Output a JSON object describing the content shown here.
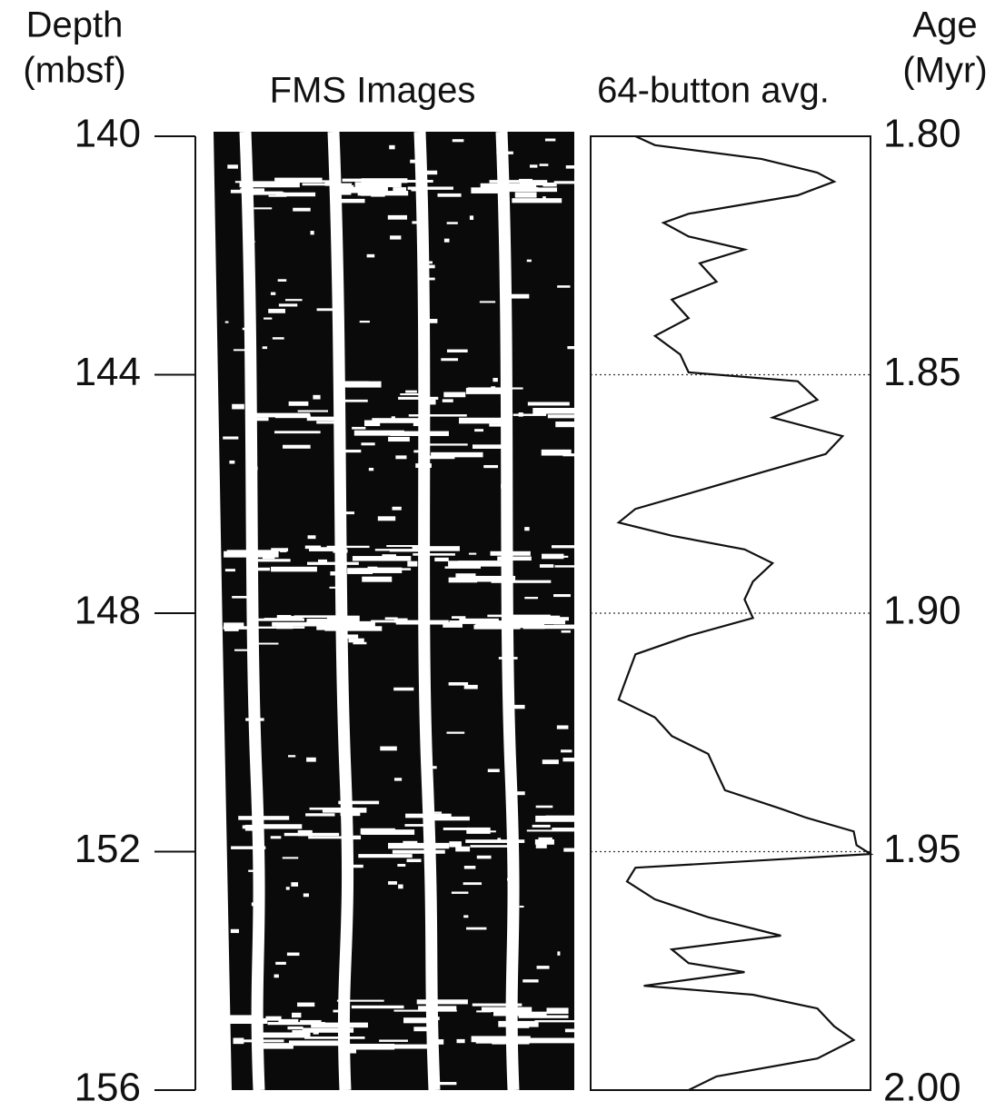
{
  "chart_data": {
    "type": "line",
    "ylabel": [
      "Depth",
      "(mbsf)"
    ],
    "y2label": [
      "Age",
      "(Myr)"
    ],
    "panel_titles": [
      "FMS Images",
      "64-button avg."
    ],
    "ylim": [
      140,
      156
    ],
    "yticks": [
      140,
      144,
      148,
      152,
      156
    ],
    "y2lim": [
      1.8,
      2.0
    ],
    "y2ticks": [
      {
        "value": 1.8,
        "label": "1.80"
      },
      {
        "value": 1.85,
        "label": "1.85"
      },
      {
        "value": 1.9,
        "label": "1.90"
      },
      {
        "value": 1.95,
        "label": "1.95"
      },
      {
        "value": 2.0,
        "label": "2.00"
      }
    ],
    "xlim": [
      0,
      100
    ],
    "grid": true,
    "series": [
      {
        "color": "#111111",
        "depth": [
          140.0,
          140.15,
          140.38,
          140.61,
          140.76,
          140.99,
          141.3,
          141.45,
          141.68,
          141.9,
          142.13,
          142.44,
          142.74,
          143.05,
          143.35,
          143.66,
          143.96,
          144.11,
          144.42,
          144.72,
          145.03,
          145.33,
          145.64,
          145.94,
          146.25,
          146.48,
          146.7,
          146.93,
          147.16,
          147.47,
          147.77,
          148.08,
          148.38,
          148.69,
          149.07,
          149.45,
          149.75,
          150.06,
          150.36,
          150.67,
          150.97,
          151.28,
          151.43,
          151.66,
          151.89,
          152.04,
          152.27,
          152.5,
          152.8,
          153.1,
          153.41,
          153.64,
          153.87,
          154.02,
          154.25,
          154.4,
          154.63,
          154.93,
          155.16,
          155.47,
          155.77,
          156.0
        ],
        "values": [
          16,
          23,
          61,
          81,
          87,
          74,
          35,
          26,
          35,
          55,
          39,
          45,
          29,
          35,
          23,
          32,
          35,
          74,
          81,
          65,
          90,
          84,
          61,
          39,
          16,
          10,
          29,
          55,
          65,
          58,
          55,
          58,
          35,
          16,
          13,
          10,
          23,
          29,
          42,
          45,
          48,
          68,
          77,
          94,
          95,
          100,
          16,
          13,
          23,
          42,
          68,
          29,
          35,
          55,
          19,
          58,
          81,
          87,
          94,
          81,
          45,
          35
        ]
      }
    ]
  }
}
